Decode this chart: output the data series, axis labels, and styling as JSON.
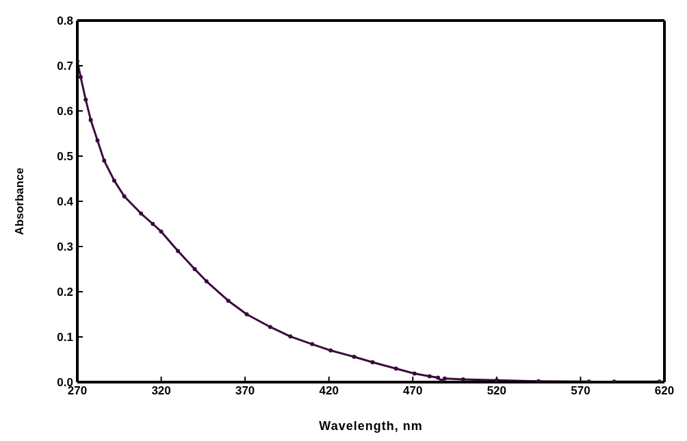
{
  "chart_data": {
    "type": "line",
    "xlabel": "Wavelength, nm",
    "ylabel": "Absorbance",
    "x": [
      270,
      272,
      275,
      278,
      282,
      286,
      292,
      298,
      308,
      315,
      320,
      330,
      340,
      347,
      360,
      371,
      385,
      397,
      410,
      421,
      435,
      446,
      460,
      471,
      480,
      485,
      487,
      489,
      500,
      520,
      545,
      575,
      583,
      590,
      617
    ],
    "series": [
      {
        "color": "#3b0b3b",
        "values": [
          0.71,
          0.675,
          0.625,
          0.58,
          0.535,
          0.49,
          0.446,
          0.411,
          0.373,
          0.35,
          0.333,
          0.29,
          0.25,
          0.223,
          0.18,
          0.15,
          0.122,
          0.101,
          0.084,
          0.07,
          0.056,
          0.044,
          0.03,
          0.019,
          0.013,
          0.01,
          0.003,
          0.008,
          0.006,
          0.004,
          0.002,
          0.001,
          null,
          0.001,
          0.001
        ]
      }
    ],
    "xlim": [
      270,
      620
    ],
    "xticks": [
      270,
      320,
      370,
      420,
      470,
      520,
      570,
      620
    ],
    "ylim": [
      0,
      0.8
    ],
    "yticks": [
      {
        "value": 0,
        "label": "0.0"
      },
      0.1,
      0.2,
      0.3,
      0.4,
      0.5,
      0.6,
      0.7,
      0.8
    ],
    "marker": "circle",
    "line_style": "solid",
    "grid": false,
    "legend": false
  }
}
